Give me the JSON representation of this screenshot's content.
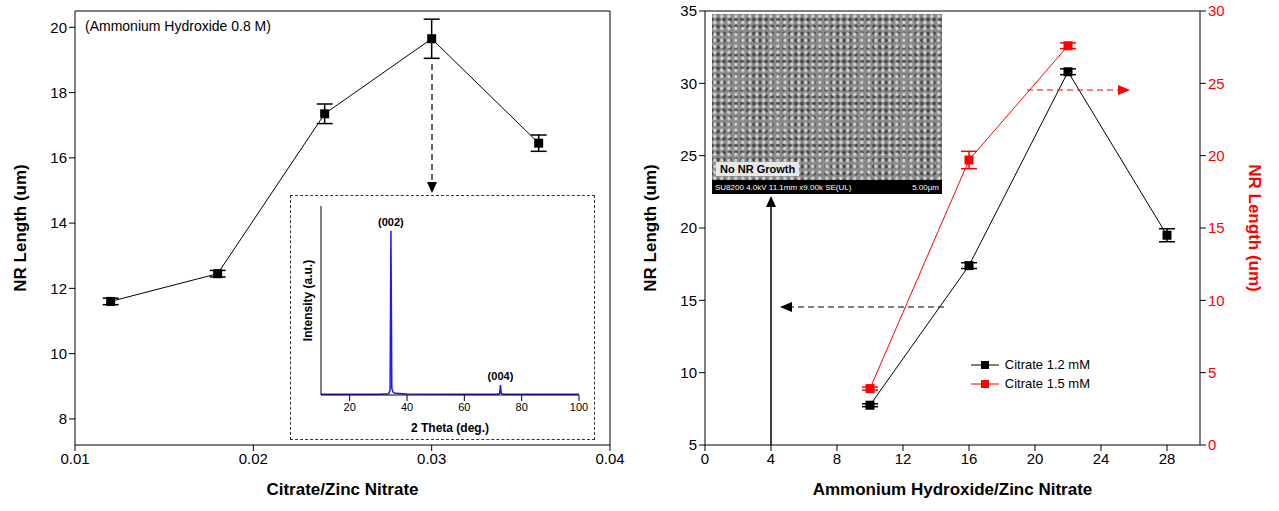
{
  "chart_data": [
    {
      "type": "line",
      "x_label": "Citrate/Zinc Nitrate",
      "y_label": "NR Length (um)",
      "annotations": [
        "(Ammonium Hydroxide 0.8 M)"
      ],
      "x": [
        0.012,
        0.018,
        0.024,
        0.03,
        0.036
      ],
      "series": [
        {
          "color": "#000000",
          "marker": "square",
          "values": [
            11.6,
            12.45,
            17.35,
            19.65,
            16.45
          ],
          "errors": [
            0.1,
            0.1,
            0.3,
            0.6,
            0.25
          ]
        }
      ],
      "xlim": [
        0.01,
        0.04
      ],
      "xticks": [
        0.01,
        0.02,
        0.03,
        0.04
      ],
      "ylim": [
        7.2,
        20.5
      ],
      "yticks": [
        8,
        10,
        12,
        14,
        16,
        18,
        20
      ]
    },
    {
      "type": "line",
      "x_label": "2 Theta (deg.)",
      "y_label": "Intensity (a.u.)",
      "x": [
        10,
        30,
        33.6,
        34.1,
        34.4,
        34.7,
        35.2,
        36,
        40,
        60,
        71.5,
        72.3,
        72.6,
        72.9,
        73.7,
        80,
        100
      ],
      "values": [
        0.4,
        0.5,
        0.8,
        3,
        100,
        4,
        1.5,
        1,
        0.6,
        0.5,
        0.5,
        1,
        6,
        1,
        0.5,
        0.5,
        0.4
      ],
      "color": "#1a1aff",
      "xlim": [
        10,
        100
      ],
      "xticks": [
        20,
        40,
        60,
        80,
        100
      ],
      "ylim": [
        0,
        115
      ],
      "tick_labels": "x",
      "peak_labels": [
        {
          "x": 34.4,
          "y": 100,
          "label": "(002)"
        },
        {
          "x": 72.6,
          "y": 6,
          "label": "(004)"
        }
      ]
    },
    {
      "type": "line",
      "x_label": "Ammonium Hydroxide/Zinc Nitrate",
      "y_label": "NR Length (um)",
      "y2_label": "NR Length (um)",
      "x": [
        10,
        16,
        22,
        28
      ],
      "series": [
        {
          "name": "Citrate 1.2 mM",
          "color": "#000000",
          "marker": "square",
          "values": [
            7.75,
            17.4,
            30.8,
            19.5
          ],
          "errors": [
            0.1,
            0.2,
            0.2,
            0.45
          ]
        },
        {
          "name": "Citrate 1.5 mM",
          "color": "#ff0000",
          "marker": "square",
          "axis": "y2",
          "values": [
            3.9,
            19.7,
            27.6,
            null
          ],
          "errors": [
            0.1,
            0.6,
            0.2,
            null
          ]
        }
      ],
      "xlim": [
        0,
        30
      ],
      "xticks": [
        0,
        4,
        8,
        12,
        16,
        20,
        24,
        28
      ],
      "ylim": [
        5,
        35
      ],
      "yticks": [
        5,
        10,
        15,
        20,
        25,
        30,
        35
      ],
      "y2lim": [
        0,
        30
      ],
      "y2ticks": [
        0,
        5,
        10,
        15,
        20,
        25,
        30
      ],
      "legend": "lower right",
      "inset_image": {
        "label": "No NR Growth",
        "caption": "SU8200 4.0kV 11.1mm x9.00k SE(UL)",
        "scale_bar": "5.00μm",
        "x": 4
      }
    }
  ]
}
